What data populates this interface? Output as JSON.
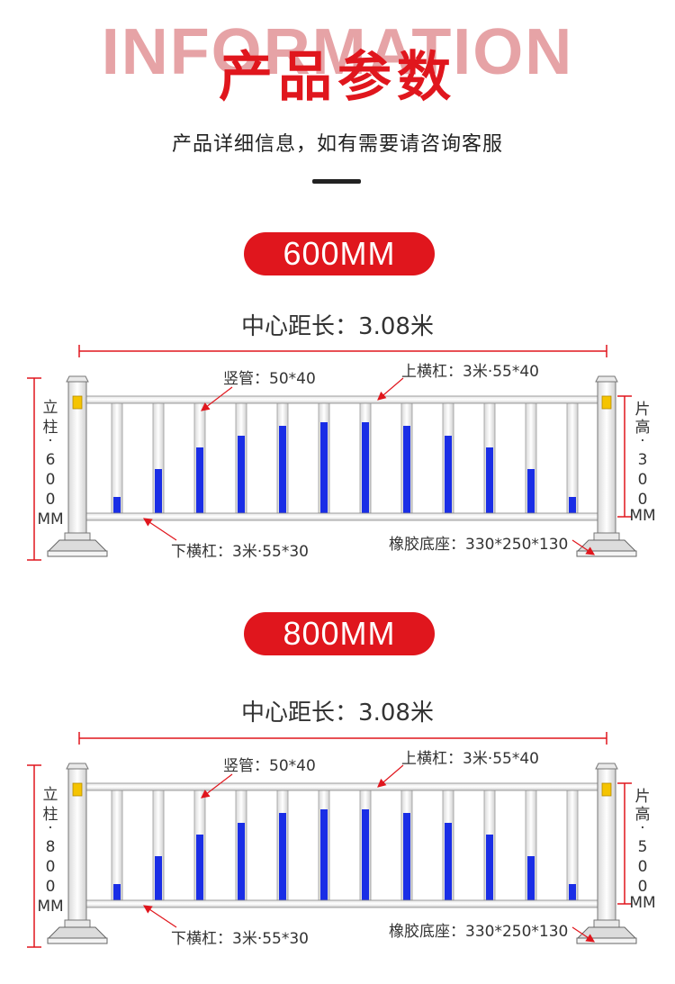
{
  "header": {
    "bg_title": "INFORMATION",
    "title": "产品参数",
    "subtitle": "产品详细信息，如有需要请咨询客服"
  },
  "sections": [
    {
      "badge": "600MM",
      "center_distance": "中心距长：3.08米",
      "labels": {
        "vertical_tube": "竖管：50*40",
        "top_rail": "上横杠：3米·55*40",
        "bottom_rail": "下横杠：3米·55*30",
        "rubber_base": "橡胶底座：330*250*130",
        "post_height_chars": [
          "立",
          "柱",
          "·",
          "6",
          "0",
          "0",
          "MM"
        ],
        "panel_height_chars": [
          "片",
          "高",
          "·",
          "3",
          "0",
          "0",
          "MM"
        ]
      }
    },
    {
      "badge": "800MM",
      "center_distance": "中心距长：3.08米",
      "labels": {
        "vertical_tube": "竖管：50*40",
        "top_rail": "上横杠：3米·55*40",
        "bottom_rail": "下横杠：3米·55*30",
        "rubber_base": "橡胶底座：330*250*130",
        "post_height_chars": [
          "立",
          "柱",
          "·",
          "8",
          "0",
          "0",
          "MM"
        ],
        "panel_height_chars": [
          "片",
          "高",
          "·",
          "5",
          "0",
          "0",
          "MM"
        ]
      }
    }
  ],
  "colors": {
    "accent": "#e0161d",
    "blue_band": "#1a2ee6",
    "reflector": "#f5c400",
    "dimension_line": "#e0161d"
  }
}
